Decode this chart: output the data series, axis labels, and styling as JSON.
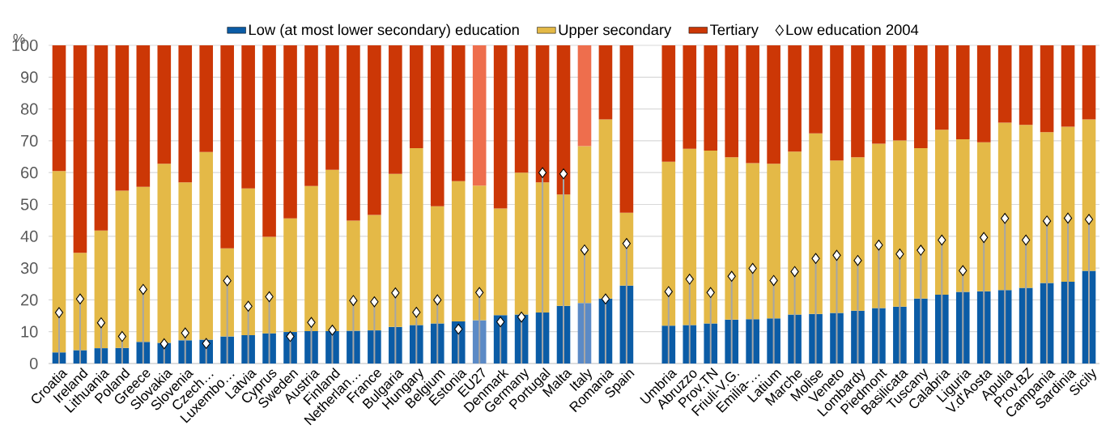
{
  "chart_data": {
    "type": "bar",
    "stacked": true,
    "ylabel": "%",
    "ylim": [
      0,
      100
    ],
    "yticks": [
      0,
      10,
      20,
      30,
      40,
      50,
      60,
      70,
      80,
      90,
      100
    ],
    "grid": "y",
    "legend": "top",
    "marker": "diamond",
    "categories": [
      "Croatia",
      "Ireland",
      "Lithuania",
      "Poland",
      "Greece",
      "Slovakia",
      "Slovenia",
      "Czech…",
      "Luxembo…",
      "Latvia",
      "Cyprus",
      "Sweden",
      "Austria",
      "Finland",
      "Netherlan…",
      "France",
      "Bulgaria",
      "Hungary",
      "Belgium",
      "Estonia",
      "EU27",
      "Denmark",
      "Germany",
      "Portugal",
      "Malta",
      "Italy",
      "Romania",
      "Spain",
      null,
      "Umbria",
      "Abruzzo",
      "Prov.TN",
      "Friuli-V.G.",
      "Emilia-…",
      "Latium",
      "Marche",
      "Molise",
      "Veneto",
      "Lombardy",
      "Piedmont",
      "Basilicata",
      "Tuscany",
      "Calabria",
      "Liguria",
      "V.d'Aosta",
      "Apulia",
      "Prov.BZ",
      "Campania",
      "Sardinia",
      "Sicily"
    ],
    "series": [
      {
        "name": "Low (at most lower secondary) education",
        "color": "#0b5ca6",
        "colors": [
          "#0b5ca6",
          "#0b5ca6",
          "#0b5ca6",
          "#0b5ca6",
          "#0b5ca6",
          "#0b5ca6",
          "#0b5ca6",
          "#0b5ca6",
          "#0b5ca6",
          "#0b5ca6",
          "#0b5ca6",
          "#0b5ca6",
          "#0b5ca6",
          "#0b5ca6",
          "#0b5ca6",
          "#0b5ca6",
          "#0b5ca6",
          "#0b5ca6",
          "#0b5ca6",
          "#0b5ca6",
          "#5b8ac6",
          "#0b5ca6",
          "#0b5ca6",
          "#0b5ca6",
          "#0b5ca6",
          "#5b8ac6",
          "#0b5ca6",
          "#0b5ca6",
          "#0b5ca6",
          "#0b5ca6",
          "#0b5ca6",
          "#0b5ca6",
          "#0b5ca6",
          "#0b5ca6",
          "#0b5ca6",
          "#0b5ca6",
          "#0b5ca6",
          "#0b5ca6",
          "#0b5ca6",
          "#0b5ca6",
          "#0b5ca6",
          "#0b5ca6",
          "#0b5ca6",
          "#0b5ca6",
          "#0b5ca6",
          "#0b5ca6",
          "#0b5ca6",
          "#0b5ca6",
          "#0b5ca6",
          "#0b5ca6"
        ],
        "values": [
          3.5,
          4.2,
          4.8,
          4.9,
          6.8,
          6.5,
          7.3,
          7.5,
          8.5,
          8.9,
          9.5,
          9.9,
          10.2,
          10.2,
          10.3,
          10.4,
          11.5,
          12.1,
          12.6,
          13.2,
          13.6,
          15.2,
          15.4,
          16.0,
          18.1,
          19.0,
          20.4,
          24.5,
          null,
          11.9,
          12.1,
          12.6,
          13.8,
          13.9,
          14.2,
          15.4,
          15.6,
          15.9,
          16.6,
          17.4,
          17.9,
          20.4,
          21.6,
          22.5,
          22.7,
          23.1,
          23.8,
          25.3,
          25.7,
          29.1
        ]
      },
      {
        "name": "Upper secondary",
        "color": "#e4b947",
        "values": [
          57.0,
          30.6,
          37.0,
          49.4,
          48.7,
          56.3,
          49.6,
          59.0,
          27.7,
          46.1,
          30.3,
          35.7,
          45.6,
          50.7,
          34.6,
          36.3,
          48.1,
          55.6,
          36.8,
          44.1,
          42.3,
          33.5,
          44.6,
          40.9,
          35.0,
          49.3,
          56.3,
          22.9,
          null,
          51.5,
          55.4,
          54.3,
          51.0,
          49.1,
          48.6,
          51.2,
          56.7,
          47.9,
          48.2,
          51.7,
          52.2,
          47.3,
          51.9,
          48.0,
          46.8,
          52.6,
          51.2,
          47.4,
          48.7,
          47.6
        ]
      },
      {
        "name": "Tertiary",
        "color": "#cc3706",
        "colors": [
          "#cc3706",
          "#cc3706",
          "#cc3706",
          "#cc3706",
          "#cc3706",
          "#cc3706",
          "#cc3706",
          "#cc3706",
          "#cc3706",
          "#cc3706",
          "#cc3706",
          "#cc3706",
          "#cc3706",
          "#cc3706",
          "#cc3706",
          "#cc3706",
          "#cc3706",
          "#cc3706",
          "#cc3706",
          "#cc3706",
          "#ee6e4d",
          "#cc3706",
          "#cc3706",
          "#cc3706",
          "#cc3706",
          "#ee6e4d",
          "#cc3706",
          "#cc3706",
          "#cc3706",
          "#cc3706",
          "#cc3706",
          "#cc3706",
          "#cc3706",
          "#cc3706",
          "#cc3706",
          "#cc3706",
          "#cc3706",
          "#cc3706",
          "#cc3706",
          "#cc3706",
          "#cc3706",
          "#cc3706",
          "#cc3706",
          "#cc3706",
          "#cc3706",
          "#cc3706",
          "#cc3706",
          "#cc3706",
          "#cc3706",
          "#cc3706"
        ],
        "values": [
          39.5,
          65.2,
          58.2,
          45.7,
          44.5,
          37.2,
          43.1,
          33.5,
          63.8,
          45.0,
          60.2,
          54.4,
          44.2,
          39.1,
          55.1,
          53.3,
          40.4,
          32.3,
          50.6,
          42.7,
          44.1,
          51.3,
          40.0,
          43.1,
          46.9,
          31.7,
          23.3,
          52.6,
          null,
          36.6,
          32.5,
          33.1,
          35.2,
          37.0,
          37.2,
          33.4,
          27.7,
          36.2,
          35.2,
          30.9,
          29.9,
          32.3,
          26.5,
          29.5,
          30.5,
          24.3,
          25.0,
          27.3,
          25.6,
          23.3
        ]
      },
      {
        "name": "Low education 2004",
        "type": "lollipop",
        "color": "#ffffff",
        "values": [
          16.0,
          20.3,
          12.8,
          8.5,
          23.3,
          6.2,
          9.6,
          6.3,
          26.0,
          18.0,
          21.0,
          8.5,
          12.9,
          10.5,
          19.8,
          19.4,
          22.2,
          16.1,
          20.0,
          10.8,
          22.3,
          13.1,
          14.6,
          60.0,
          59.6,
          35.7,
          20.3,
          37.7,
          null,
          22.6,
          26.5,
          22.3,
          27.4,
          29.9,
          26.1,
          28.9,
          33.0,
          34.0,
          32.4,
          37.2,
          34.4,
          35.6,
          38.8,
          29.2,
          39.6,
          45.6,
          38.8,
          44.8,
          45.7,
          45.3
        ]
      }
    ]
  }
}
